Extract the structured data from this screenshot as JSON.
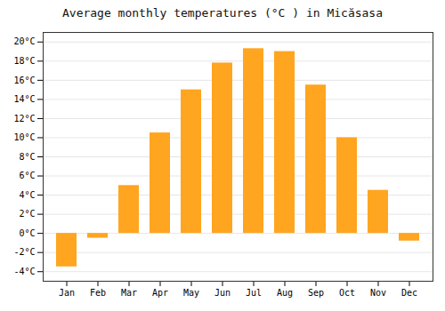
{
  "chart_data": {
    "type": "bar",
    "title": "Average monthly temperatures (°C ) in Micăsasa",
    "categories": [
      "Jan",
      "Feb",
      "Mar",
      "Apr",
      "May",
      "Jun",
      "Jul",
      "Aug",
      "Sep",
      "Oct",
      "Nov",
      "Dec"
    ],
    "values": [
      -3.5,
      -0.5,
      5.0,
      10.5,
      15.0,
      17.8,
      19.3,
      19.0,
      15.5,
      10.0,
      4.5,
      -0.8
    ],
    "color": "#FFA520",
    "ylim": [
      -5,
      21
    ],
    "yticks": [
      {
        "value": -4,
        "label": "-4°C"
      },
      {
        "value": -2,
        "label": "-2°C"
      },
      {
        "value": 0,
        "label": "0°C"
      },
      {
        "value": 2,
        "label": "2°C"
      },
      {
        "value": 4,
        "label": "4°C"
      },
      {
        "value": 6,
        "label": "6°C"
      },
      {
        "value": 8,
        "label": "8°C"
      },
      {
        "value": 10,
        "label": "10°C"
      },
      {
        "value": 12,
        "label": "12°C"
      },
      {
        "value": 14,
        "label": "14°C"
      },
      {
        "value": 16,
        "label": "16°C"
      },
      {
        "value": 18,
        "label": "18°C"
      },
      {
        "value": 20,
        "label": "20°C"
      }
    ],
    "grid": true
  }
}
